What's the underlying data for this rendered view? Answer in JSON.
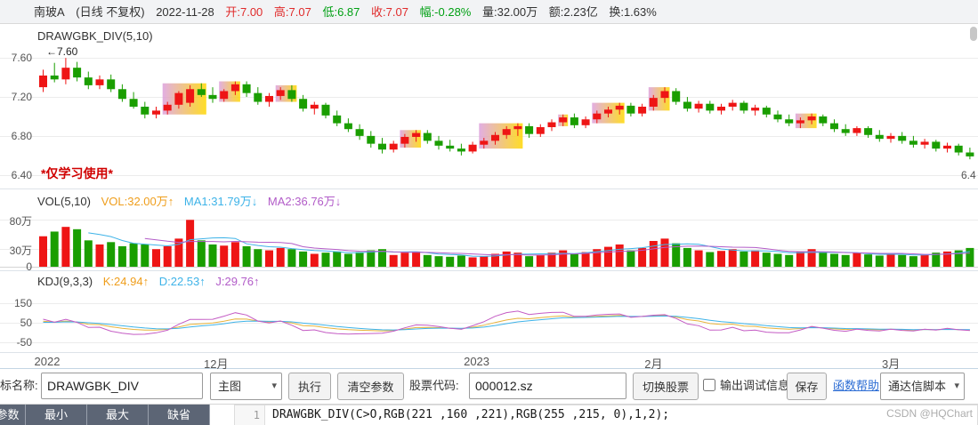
{
  "info_bar": {
    "stock_name": "南玻A",
    "period_label": "(日线 不复权)",
    "date": "2022-11-28",
    "open_label": "开:7.00",
    "high_label": "高:7.07",
    "low_label": "低:6.87",
    "close_label": "收:7.07",
    "change_label": "幅:-0.28%",
    "volume_label": "量:32.00万",
    "amount_label": "额:2.23亿",
    "turnover_label": "换:1.63%"
  },
  "main_chart": {
    "indicator_label": "DRAWGBK_DIV(5,10)",
    "annotation": "←7.60",
    "watermark": "*仅学习使用*",
    "right_label": "6.4"
  },
  "vol_panel": {
    "title": "VOL(5,10)",
    "vol_label": "VOL:32.00万↑",
    "ma1_label": "MA1:31.79万↓",
    "ma2_label": "MA2:36.76万↓"
  },
  "kdj_panel": {
    "title": "KDJ(9,3,3)",
    "k_label": "K:24.94↑",
    "d_label": "D:22.53↑",
    "j_label": "J:29.76↑"
  },
  "toolbar": {
    "name_label": "指标名称:",
    "name_value": "DRAWGBK_DIV",
    "chart_type_value": "主图",
    "run_label": "执行",
    "clear_label": "清空参数",
    "stock_label": "股票代码:",
    "stock_value": "000012.sz",
    "switch_label": "切换股票",
    "debug_label": "输出调试信息",
    "save_label": "保存",
    "help_label": "函数帮助",
    "script_type_value": "通达信脚本"
  },
  "params_table": {
    "headers": [
      "参数",
      "最小",
      "最大",
      "缺省"
    ]
  },
  "editor": {
    "line_number": "1",
    "code": "DRAWGBK_DIV(C>O,RGB(221 ,160 ,221),RGB(255 ,215, 0),1,2);"
  },
  "site_watermark": "CSDN @HQChart",
  "chart_data": [
    {
      "type": "candlestick",
      "name": "主图 DRAWGBK_DIV(5,10)",
      "ylim": [
        6.37,
        7.83
      ],
      "ytick_values": [
        7.6,
        7.2,
        6.8,
        6.4
      ],
      "ytick_labels": [
        "7.60",
        "7.20",
        "6.80",
        "6.40"
      ],
      "x_ticks": [
        {
          "index": 0,
          "label": "2022"
        },
        {
          "index": 15,
          "label": "12月"
        },
        {
          "index": 38,
          "label": "2023"
        },
        {
          "index": 54,
          "label": "2月"
        },
        {
          "index": 75,
          "label": "3月"
        }
      ],
      "up_color": "#ee1515",
      "down_color": "#1a9e00",
      "gbk_gradient": [
        "#dda0dd",
        "#ffd700"
      ],
      "gbk_regions": [
        [
          11,
          14
        ],
        [
          16,
          17
        ],
        [
          21,
          22
        ],
        [
          32,
          33
        ],
        [
          39,
          42
        ],
        [
          46,
          46
        ],
        [
          49,
          51
        ],
        [
          54,
          55
        ],
        [
          67,
          68
        ]
      ],
      "ohlc": [
        [
          7.3,
          7.48,
          7.25,
          7.42
        ],
        [
          7.42,
          7.55,
          7.35,
          7.38
        ],
        [
          7.38,
          7.6,
          7.33,
          7.5
        ],
        [
          7.5,
          7.56,
          7.36,
          7.4
        ],
        [
          7.4,
          7.46,
          7.28,
          7.32
        ],
        [
          7.32,
          7.42,
          7.28,
          7.38
        ],
        [
          7.38,
          7.43,
          7.25,
          7.28
        ],
        [
          7.28,
          7.33,
          7.15,
          7.18
        ],
        [
          7.18,
          7.25,
          7.08,
          7.1
        ],
        [
          7.1,
          7.15,
          6.98,
          7.02
        ],
        [
          7.02,
          7.1,
          6.98,
          7.06
        ],
        [
          7.06,
          7.15,
          7.02,
          7.12
        ],
        [
          7.12,
          7.26,
          7.08,
          7.24
        ],
        [
          7.14,
          7.32,
          7.1,
          7.28
        ],
        [
          7.28,
          7.34,
          7.2,
          7.22
        ],
        [
          7.22,
          7.3,
          7.14,
          7.18
        ],
        [
          7.18,
          7.28,
          7.15,
          7.26
        ],
        [
          7.26,
          7.36,
          7.22,
          7.33
        ],
        [
          7.33,
          7.36,
          7.2,
          7.24
        ],
        [
          7.24,
          7.3,
          7.12,
          7.15
        ],
        [
          7.15,
          7.24,
          7.1,
          7.21
        ],
        [
          7.21,
          7.3,
          7.17,
          7.27
        ],
        [
          7.27,
          7.32,
          7.15,
          7.18
        ],
        [
          7.18,
          7.22,
          7.05,
          7.08
        ],
        [
          7.08,
          7.15,
          7.02,
          7.12
        ],
        [
          7.12,
          7.14,
          6.98,
          7.01
        ],
        [
          7.01,
          7.06,
          6.9,
          6.93
        ],
        [
          6.93,
          6.98,
          6.84,
          6.87
        ],
        [
          6.87,
          6.92,
          6.76,
          6.8
        ],
        [
          6.8,
          6.85,
          6.68,
          6.72
        ],
        [
          6.72,
          6.78,
          6.62,
          6.66
        ],
        [
          6.66,
          6.75,
          6.63,
          6.72
        ],
        [
          6.72,
          6.82,
          6.68,
          6.79
        ],
        [
          6.79,
          6.86,
          6.74,
          6.83
        ],
        [
          6.83,
          6.86,
          6.72,
          6.75
        ],
        [
          6.75,
          6.8,
          6.66,
          6.7
        ],
        [
          6.7,
          6.76,
          6.64,
          6.67
        ],
        [
          6.67,
          6.72,
          6.6,
          6.64
        ],
        [
          6.64,
          6.74,
          6.62,
          6.71
        ],
        [
          6.71,
          6.78,
          6.67,
          6.75
        ],
        [
          6.75,
          6.84,
          6.71,
          6.81
        ],
        [
          6.81,
          6.9,
          6.77,
          6.87
        ],
        [
          6.87,
          6.93,
          6.8,
          6.9
        ],
        [
          6.9,
          6.93,
          6.78,
          6.82
        ],
        [
          6.82,
          6.92,
          6.79,
          6.89
        ],
        [
          6.89,
          6.97,
          6.85,
          6.94
        ],
        [
          6.94,
          7.02,
          6.9,
          6.99
        ],
        [
          6.99,
          7.03,
          6.88,
          6.91
        ],
        [
          6.91,
          7.0,
          6.88,
          6.97
        ],
        [
          6.97,
          7.06,
          6.93,
          7.03
        ],
        [
          7.03,
          7.1,
          6.99,
          7.07
        ],
        [
          7.07,
          7.14,
          7.02,
          7.11
        ],
        [
          7.11,
          7.14,
          7.0,
          7.03
        ],
        [
          7.03,
          7.13,
          7.0,
          7.1
        ],
        [
          7.1,
          7.22,
          7.06,
          7.19
        ],
        [
          7.19,
          7.3,
          7.14,
          7.26
        ],
        [
          7.26,
          7.29,
          7.12,
          7.15
        ],
        [
          7.15,
          7.2,
          7.05,
          7.08
        ],
        [
          7.08,
          7.16,
          7.04,
          7.13
        ],
        [
          7.13,
          7.16,
          7.03,
          7.06
        ],
        [
          7.06,
          7.13,
          7.02,
          7.1
        ],
        [
          7.1,
          7.17,
          7.06,
          7.14
        ],
        [
          7.14,
          7.16,
          7.03,
          7.06
        ],
        [
          7.06,
          7.12,
          7.01,
          7.09
        ],
        [
          7.09,
          7.11,
          6.99,
          7.02
        ],
        [
          7.02,
          7.06,
          6.94,
          6.97
        ],
        [
          6.97,
          7.02,
          6.9,
          6.93
        ],
        [
          6.93,
          6.99,
          6.88,
          6.96
        ],
        [
          6.96,
          7.03,
          6.92,
          7.0
        ],
        [
          7.0,
          7.02,
          6.9,
          6.93
        ],
        [
          6.93,
          6.97,
          6.84,
          6.87
        ],
        [
          6.87,
          6.92,
          6.8,
          6.83
        ],
        [
          6.83,
          6.9,
          6.8,
          6.88
        ],
        [
          6.88,
          6.9,
          6.78,
          6.81
        ],
        [
          6.81,
          6.86,
          6.74,
          6.77
        ],
        [
          6.77,
          6.83,
          6.73,
          6.8
        ],
        [
          6.8,
          6.84,
          6.72,
          6.75
        ],
        [
          6.75,
          6.8,
          6.68,
          6.71
        ],
        [
          6.71,
          6.77,
          6.67,
          6.74
        ],
        [
          6.74,
          6.76,
          6.64,
          6.67
        ],
        [
          6.67,
          6.73,
          6.63,
          6.7
        ],
        [
          6.7,
          6.72,
          6.6,
          6.63
        ],
        [
          6.63,
          6.68,
          6.56,
          6.59
        ]
      ]
    },
    {
      "type": "bar",
      "name": "VOL(5,10)",
      "unit": "万",
      "ylim": [
        0,
        88
      ],
      "ytick_values": [
        80,
        30,
        0
      ],
      "ytick_labels": [
        "80万",
        "30万",
        "0"
      ],
      "values": [
        52,
        60,
        68,
        64,
        45,
        38,
        42,
        35,
        40,
        38,
        30,
        35,
        48,
        80,
        45,
        38,
        36,
        42,
        35,
        30,
        28,
        32,
        30,
        26,
        22,
        24,
        26,
        22,
        25,
        28,
        30,
        20,
        24,
        26,
        20,
        18,
        17,
        19,
        16,
        18,
        22,
        26,
        24,
        18,
        20,
        24,
        28,
        22,
        25,
        30,
        34,
        38,
        28,
        32,
        44,
        48,
        40,
        32,
        28,
        25,
        27,
        30,
        26,
        28,
        24,
        22,
        20,
        26,
        30,
        24,
        22,
        20,
        24,
        21,
        19,
        22,
        20,
        18,
        21,
        24,
        26,
        28,
        32
      ],
      "ma_periods": [
        5,
        10
      ],
      "ma_colors": [
        "#3eb3e8",
        "#b25cc8"
      ]
    },
    {
      "type": "line",
      "name": "KDJ(9,3,3)",
      "params": [
        9,
        3,
        3
      ],
      "derived": "K/D/J computed from ohlc of main panel",
      "ylim": [
        -100,
        210
      ],
      "ytick_values": [
        150,
        50,
        -50
      ],
      "ytick_labels": [
        "150",
        "50",
        "-50"
      ],
      "colors": {
        "K": "#e8b33c",
        "D": "#3eb3e8",
        "J": "#c45bc4"
      }
    }
  ]
}
